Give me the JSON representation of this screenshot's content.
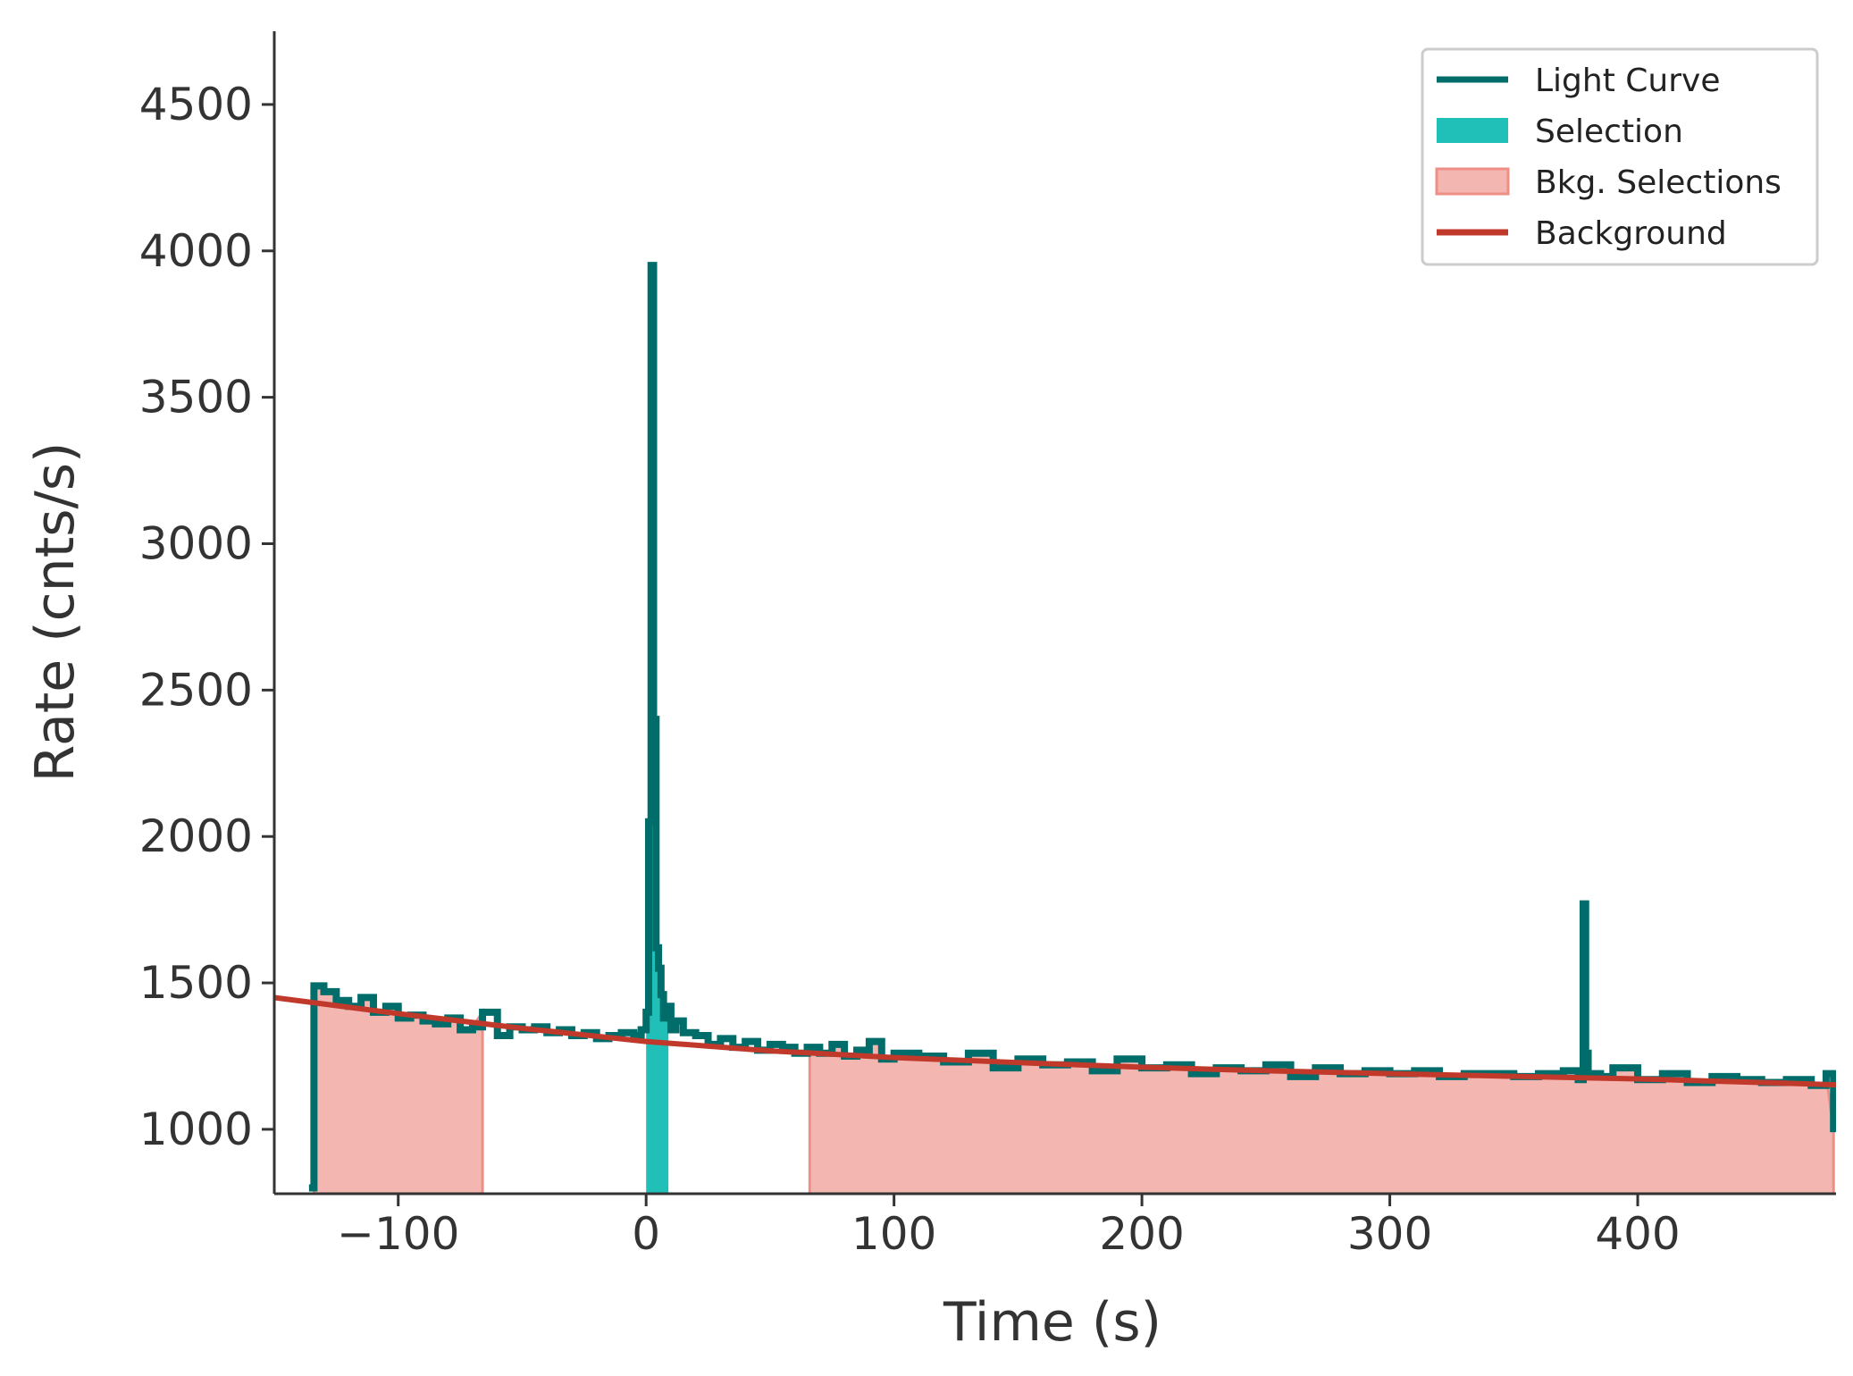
{
  "chart_data": {
    "type": "line",
    "title": "",
    "xlabel": "Time (s)",
    "ylabel": "Rate (cnts/s)",
    "xlim": [
      -150,
      480
    ],
    "ylim": [
      780,
      4750
    ],
    "xticks": [
      -100,
      0,
      100,
      200,
      300,
      400
    ],
    "xtick_labels": [
      "−100",
      "0",
      "100",
      "200",
      "300",
      "400"
    ],
    "yticks": [
      1000,
      1500,
      2000,
      2500,
      3000,
      3500,
      4000,
      4500
    ],
    "ytick_labels": [
      "1000",
      "1500",
      "2000",
      "2500",
      "3000",
      "3500",
      "4000",
      "4500"
    ],
    "grid": false,
    "legend_position": "top-right",
    "colors": {
      "light_curve": "#006d6a",
      "selection": "#20c0b8",
      "bkg_fill": "#f4b6b1",
      "bkg_edge": "#ee8f86",
      "background": "#c0392b",
      "axis": "#333333"
    },
    "legend": [
      {
        "label": "Light Curve",
        "kind": "line",
        "color": "#006d6a"
      },
      {
        "label": "Selection",
        "kind": "patch",
        "color": "#20c0b8"
      },
      {
        "label": "Bkg. Selections",
        "kind": "patch",
        "color": "#f4b6b1"
      },
      {
        "label": "Background",
        "kind": "line",
        "color": "#c0392b"
      }
    ],
    "selection_interval": [
      0,
      9
    ],
    "bkg_intervals": [
      [
        -134,
        -66
      ],
      [
        66,
        479
      ]
    ],
    "background_model": {
      "x": [
        -150,
        -100,
        -50,
        0,
        50,
        100,
        150,
        200,
        250,
        300,
        350,
        400,
        450,
        480
      ],
      "y": [
        1450,
        1395,
        1345,
        1300,
        1268,
        1245,
        1228,
        1212,
        1200,
        1190,
        1181,
        1172,
        1160,
        1152
      ]
    },
    "light_curve": {
      "x": [
        -136,
        -134,
        -130,
        -125,
        -120,
        -115,
        -110,
        -105,
        -100,
        -95,
        -90,
        -85,
        -80,
        -75,
        -70,
        -66,
        -60,
        -55,
        -50,
        -45,
        -40,
        -35,
        -30,
        -25,
        -20,
        -15,
        -10,
        -5,
        -2,
        0,
        1,
        2,
        3,
        4,
        5,
        6,
        7,
        8,
        10,
        12,
        15,
        20,
        25,
        30,
        35,
        40,
        45,
        50,
        55,
        60,
        65,
        70,
        75,
        80,
        85,
        90,
        95,
        100,
        110,
        120,
        130,
        140,
        150,
        160,
        170,
        180,
        190,
        200,
        210,
        220,
        230,
        240,
        250,
        260,
        270,
        280,
        290,
        300,
        310,
        320,
        330,
        340,
        350,
        360,
        370,
        376,
        378,
        379,
        380,
        385,
        390,
        400,
        410,
        420,
        430,
        440,
        450,
        460,
        470,
        476,
        479
      ],
      "y": [
        800,
        1490,
        1470,
        1440,
        1420,
        1450,
        1400,
        1420,
        1380,
        1390,
        1370,
        1360,
        1380,
        1340,
        1350,
        1400,
        1320,
        1350,
        1340,
        1350,
        1330,
        1340,
        1320,
        1330,
        1310,
        1320,
        1330,
        1320,
        1340,
        1400,
        2050,
        3950,
        2400,
        1620,
        1550,
        1460,
        1380,
        1420,
        1340,
        1370,
        1330,
        1320,
        1290,
        1310,
        1280,
        1300,
        1270,
        1290,
        1280,
        1260,
        1280,
        1260,
        1290,
        1250,
        1270,
        1300,
        1240,
        1260,
        1250,
        1230,
        1260,
        1210,
        1240,
        1220,
        1230,
        1200,
        1240,
        1210,
        1220,
        1190,
        1210,
        1200,
        1220,
        1180,
        1210,
        1190,
        1200,
        1190,
        1200,
        1180,
        1190,
        1190,
        1180,
        1190,
        1200,
        1170,
        1770,
        1260,
        1190,
        1180,
        1210,
        1170,
        1190,
        1160,
        1180,
        1170,
        1160,
        1170,
        1150,
        1190,
        990
      ]
    }
  }
}
